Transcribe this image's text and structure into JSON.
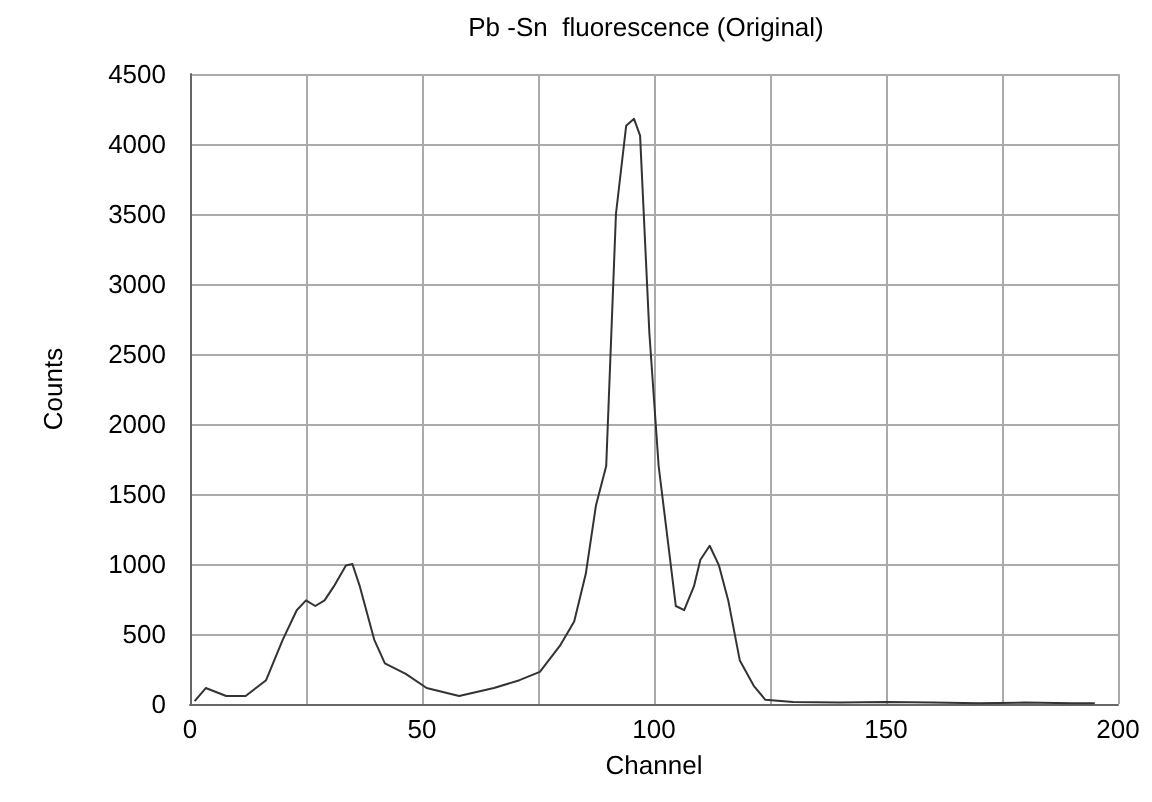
{
  "chart_data": {
    "type": "line",
    "title": "Pb -Sn  fluorescence (Original)",
    "xlabel": "Channel",
    "ylabel": "Counts",
    "x": [
      1,
      3.4,
      7.8,
      12,
      16.4,
      20,
      23,
      25,
      27,
      29,
      31,
      33.6,
      35,
      36.6,
      39.7,
      42,
      46.5,
      51,
      58,
      65.5,
      71,
      75.4,
      79.7,
      82.8,
      85.3,
      87.5,
      89.7,
      91.8,
      94,
      95.7,
      97,
      99,
      101,
      104.7,
      106.5,
      108.6,
      110,
      112,
      114,
      116,
      118.5,
      121.5,
      124,
      130,
      140,
      150,
      160,
      170,
      180,
      190,
      195
    ],
    "series": [
      {
        "color": "#333333",
        "values": [
          20,
          114,
          57,
          57,
          170,
          460,
          670,
          740,
          700,
          740,
          840,
          990,
          1000,
          840,
          460,
          290,
          215,
          114,
          57,
          114,
          170,
          230,
          415,
          590,
          930,
          1420,
          1700,
          3500,
          4130,
          4180,
          4060,
          2650,
          1700,
          700,
          670,
          840,
          1030,
          1130,
          990,
          740,
          310,
          130,
          30,
          15,
          10,
          15,
          10,
          5,
          10,
          5,
          5
        ]
      }
    ],
    "xlim": [
      0,
      200
    ],
    "xticks": [
      0,
      {
        "value": 25,
        "label": null
      },
      50,
      {
        "value": 75,
        "label": null
      },
      100,
      {
        "value": 125,
        "label": null
      },
      150,
      {
        "value": 175,
        "label": null
      },
      200
    ],
    "ylim": [
      0,
      4500
    ],
    "yticks": [
      0,
      500,
      1000,
      1500,
      2000,
      2500,
      3000,
      3500,
      4000,
      4500
    ],
    "grid": true,
    "marker": "none",
    "line_style": "solid"
  }
}
